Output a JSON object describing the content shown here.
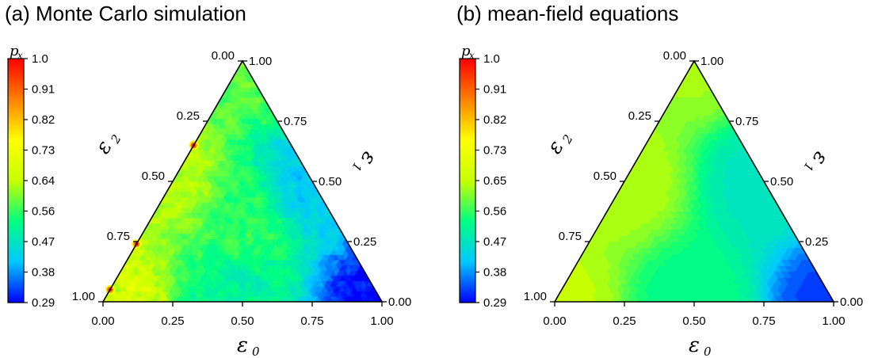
{
  "chart_data": [
    {
      "type": "heatmap",
      "subtype": "ternary",
      "title": "(a) Monte Carlo simulation",
      "colorbar": {
        "label": "p_x",
        "ticks": [
          "1.0",
          "0.91",
          "0.82",
          "0.73",
          "0.64",
          "0.56",
          "0.47",
          "0.38",
          "0.29"
        ],
        "range": [
          0.29,
          1.0
        ],
        "colormap": [
          "#0000ff",
          "#00c8ff",
          "#00ff80",
          "#c8ff00",
          "#ffff00",
          "#ff8000",
          "#ff0000"
        ]
      },
      "axes": {
        "bottom": {
          "label": "ε0",
          "ticks": [
            "0.00",
            "0.25",
            "0.50",
            "0.75",
            "1.00"
          ]
        },
        "left": {
          "label": "ε2",
          "ticks": [
            "0.00",
            "0.25",
            "0.50",
            "0.75",
            "1.00"
          ]
        },
        "right": {
          "label": "ε1",
          "ticks": [
            "0.00",
            "0.25",
            "0.50",
            "0.75",
            "1.00"
          ]
        }
      },
      "values": [
        {
          "e0": 0.0,
          "e1": 0.0,
          "e2": 1.0,
          "px": 0.68
        },
        {
          "e0": 0.0,
          "e1": 1.0,
          "e2": 0.0,
          "px": 0.58
        },
        {
          "e0": 1.0,
          "e1": 0.0,
          "e2": 0.0,
          "px": 0.3
        },
        {
          "e0": 0.5,
          "e1": 0.5,
          "e2": 0.0,
          "px": 0.42
        },
        {
          "e0": 0.5,
          "e1": 0.0,
          "e2": 0.5,
          "px": 0.5
        },
        {
          "e0": 0.0,
          "e1": 0.5,
          "e2": 0.5,
          "px": 0.63
        },
        {
          "e0": 0.33,
          "e1": 0.33,
          "e2": 0.34,
          "px": 0.55
        }
      ],
      "hotspots": [
        {
          "e0": 0.0,
          "e1": 0.65,
          "e2": 0.35,
          "px": 0.95
        },
        {
          "e0": 0.0,
          "e1": 0.24,
          "e2": 0.76,
          "px": 0.95
        },
        {
          "e0": 0.0,
          "e1": 0.05,
          "e2": 0.95,
          "px": 0.95
        }
      ]
    },
    {
      "type": "heatmap",
      "subtype": "ternary",
      "title": "(b) mean-field equations",
      "colorbar": {
        "label": "p_x",
        "ticks": [
          "1.0",
          "0.91",
          "0.82",
          "0.73",
          "0.65",
          "0.56",
          "0.47",
          "0.38",
          "0.29"
        ],
        "range": [
          0.29,
          1.0
        ],
        "colormap": [
          "#0000ff",
          "#00c8ff",
          "#00ff80",
          "#c8ff00",
          "#ffff00",
          "#ff8000",
          "#ff0000"
        ]
      },
      "axes": {
        "bottom": {
          "label": "ε0",
          "ticks": [
            "0.00",
            "0.25",
            "0.50",
            "0.75",
            "1.00"
          ]
        },
        "left": {
          "label": "ε2",
          "ticks": [
            "0.00",
            "0.25",
            "0.50",
            "0.75",
            "1.00"
          ]
        },
        "right": {
          "label": "ε1",
          "ticks": [
            "0.00",
            "0.25",
            "0.50",
            "0.75",
            "1.00"
          ]
        }
      },
      "values": [
        {
          "e0": 0.0,
          "e1": 0.0,
          "e2": 1.0,
          "px": 0.64
        },
        {
          "e0": 0.0,
          "e1": 1.0,
          "e2": 0.0,
          "px": 0.62
        },
        {
          "e0": 1.0,
          "e1": 0.0,
          "e2": 0.0,
          "px": 0.33
        },
        {
          "e0": 0.5,
          "e1": 0.5,
          "e2": 0.0,
          "px": 0.47
        },
        {
          "e0": 0.5,
          "e1": 0.0,
          "e2": 0.5,
          "px": 0.52
        },
        {
          "e0": 0.0,
          "e1": 0.5,
          "e2": 0.5,
          "px": 0.63
        }
      ],
      "hotspots": []
    }
  ]
}
